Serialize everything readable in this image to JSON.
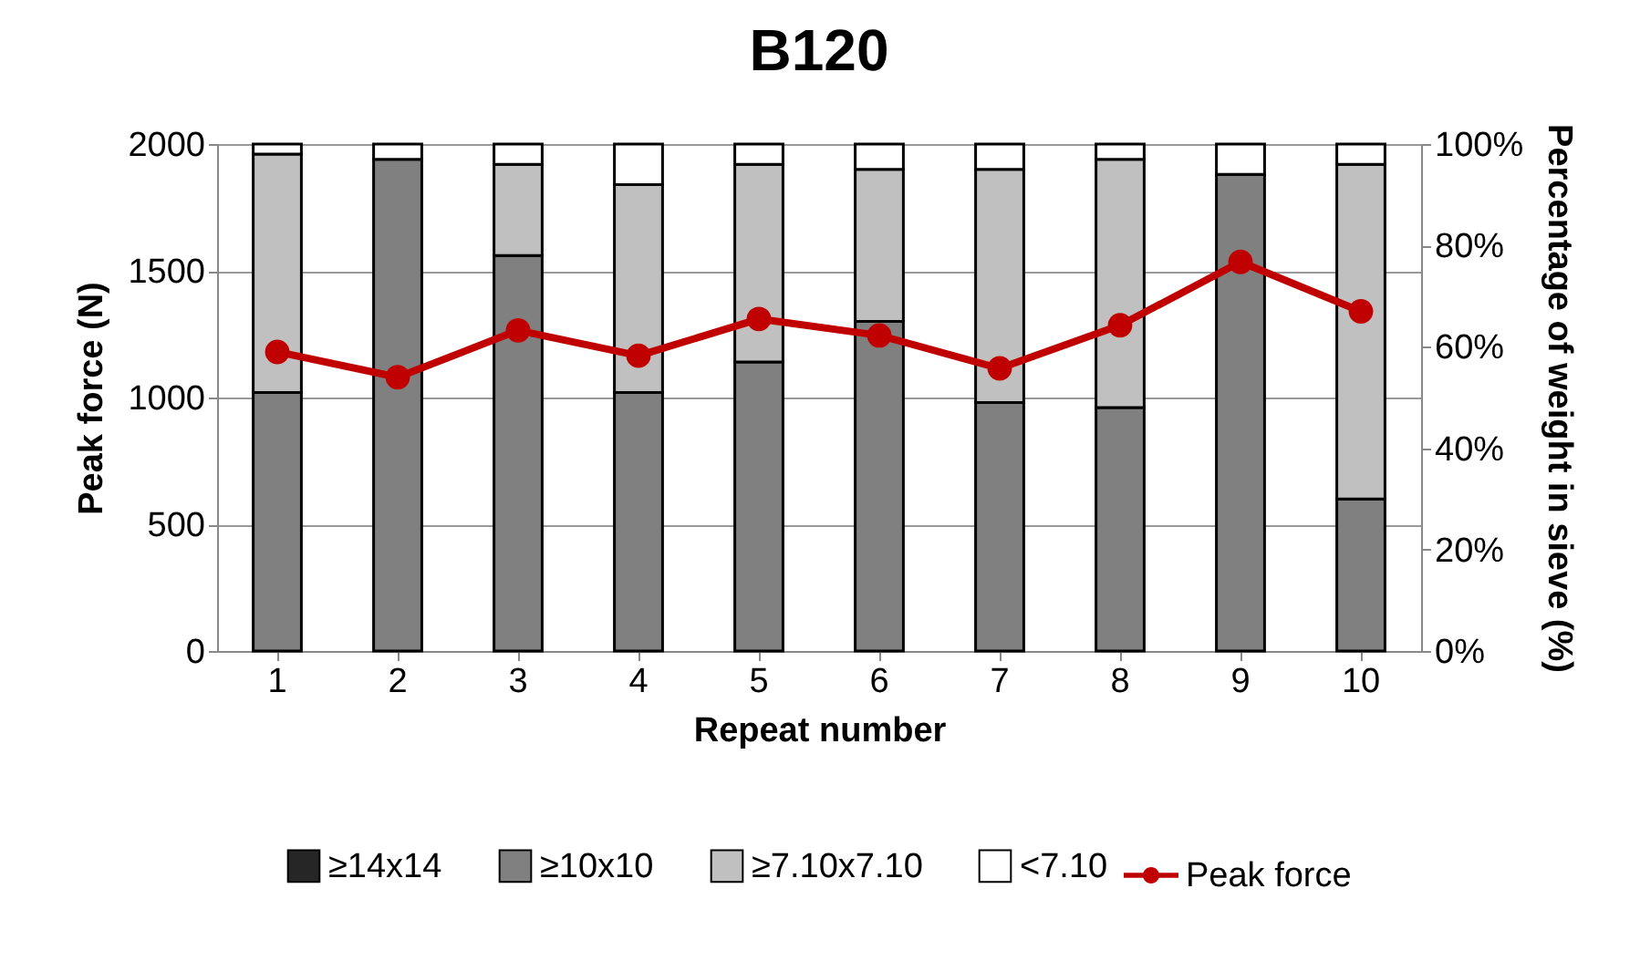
{
  "chart_data": {
    "type": "bar",
    "stacked": true,
    "title": "B120",
    "xlabel": "Repeat number",
    "ylabel": "Peak force (N)",
    "y2label": "Percentage of weight in sieve (%)",
    "categories": [
      "1",
      "2",
      "3",
      "4",
      "5",
      "6",
      "7",
      "8",
      "9",
      "10"
    ],
    "series": [
      {
        "name": "≥14x14",
        "color": "#262626",
        "axis": "y2",
        "values": [
          0,
          0,
          0,
          0,
          0,
          0,
          0,
          0,
          0,
          0
        ]
      },
      {
        "name": "≥10x10",
        "color": "#808080",
        "axis": "y2",
        "values": [
          51,
          97,
          78,
          51,
          57,
          65,
          49,
          48,
          94,
          30
        ]
      },
      {
        "name": "≥7.10x7.10",
        "color": "#c0c0c0",
        "axis": "y2",
        "values": [
          47,
          0,
          18,
          41,
          39,
          30,
          46,
          49,
          0,
          66
        ]
      },
      {
        "name": "<7.10",
        "color": "#ffffff",
        "axis": "y2",
        "values": [
          2,
          3,
          4,
          8,
          4,
          5,
          5,
          3,
          6,
          4
        ]
      },
      {
        "name": "Peak force",
        "type": "line",
        "color": "#c00000",
        "values": [
          1180,
          1080,
          1265,
          1165,
          1310,
          1245,
          1115,
          1285,
          1535,
          1340
        ]
      }
    ],
    "ylim": [
      0,
      2000
    ],
    "yticks": [
      0,
      500,
      1000,
      1500,
      2000
    ],
    "y2lim": [
      0,
      100
    ],
    "y2ticks": [
      {
        "value": 0,
        "label": "0%"
      },
      {
        "value": 20,
        "label": "20%"
      },
      {
        "value": 40,
        "label": "40%"
      },
      {
        "value": 60,
        "label": "60%"
      },
      {
        "value": 80,
        "label": "80%"
      },
      {
        "value": 100,
        "label": "100%"
      }
    ],
    "grid": "y",
    "legend": "bottom",
    "marker": "circle",
    "line_style": "solid"
  }
}
